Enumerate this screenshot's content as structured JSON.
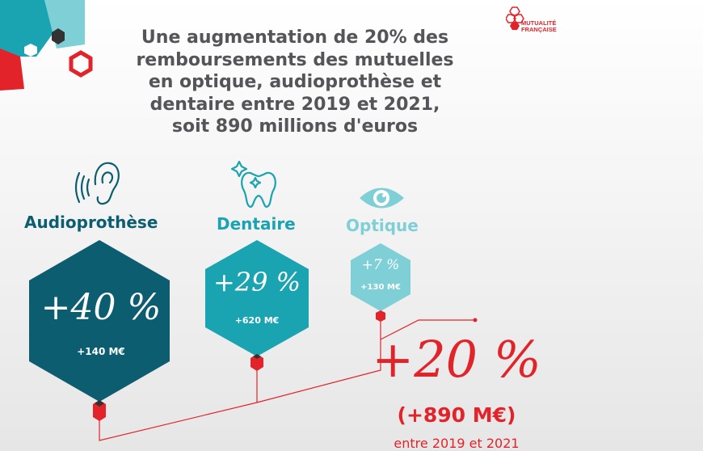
{
  "brand": {
    "logo_text_line1": "MUTUALITÉ",
    "logo_text_line2": "FRANÇAISE",
    "colors": {
      "red": "#e3232a",
      "dark_teal": "#0c5d6f",
      "teal": "#1aa3b0",
      "light_teal": "#7fcfd7",
      "title_gray": "#555559"
    }
  },
  "title_lines": [
    "Une augmentation de 20% des",
    "remboursements des mutuelles",
    "en optique, audioprothèse et",
    "dentaire entre 2019 et 2021,",
    "soit 890 millions d'euros"
  ],
  "categories": [
    {
      "label": "Audioprothèse",
      "pct": "+40 %",
      "amount": "+140 M€",
      "icon": "ear-icon",
      "value_pct": 40
    },
    {
      "label": "Dentaire",
      "pct": "+29 %",
      "amount": "+620 M€",
      "icon": "tooth-icon",
      "value_pct": 29
    },
    {
      "label": "Optique",
      "pct": "+7 %",
      "amount": "+130 M€",
      "icon": "eye-icon",
      "value_pct": 7
    }
  ],
  "total": {
    "pct": "+20 %",
    "amount": "(+890 M€)",
    "period": "entre 2019 et 2021"
  }
}
